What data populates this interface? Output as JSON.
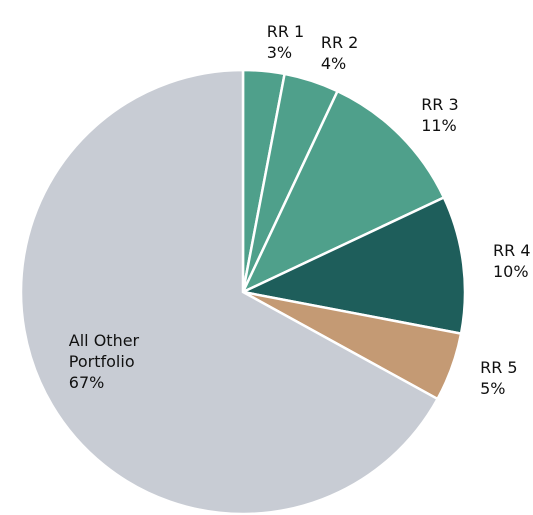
{
  "chart_data": {
    "type": "pie",
    "categories": [
      "RR 1",
      "RR 2",
      "RR 3",
      "RR 4",
      "RR 5",
      "All Other Portfolio"
    ],
    "values": [
      3,
      4,
      11,
      10,
      5,
      67
    ],
    "value_labels": [
      "3%",
      "4%",
      "11%",
      "10%",
      "5%",
      "67%"
    ],
    "colors": [
      "#4fa08b",
      "#4fa08b",
      "#4fa08b",
      "#1e5e5b",
      "#c49a74",
      "#c8ccd4"
    ]
  }
}
